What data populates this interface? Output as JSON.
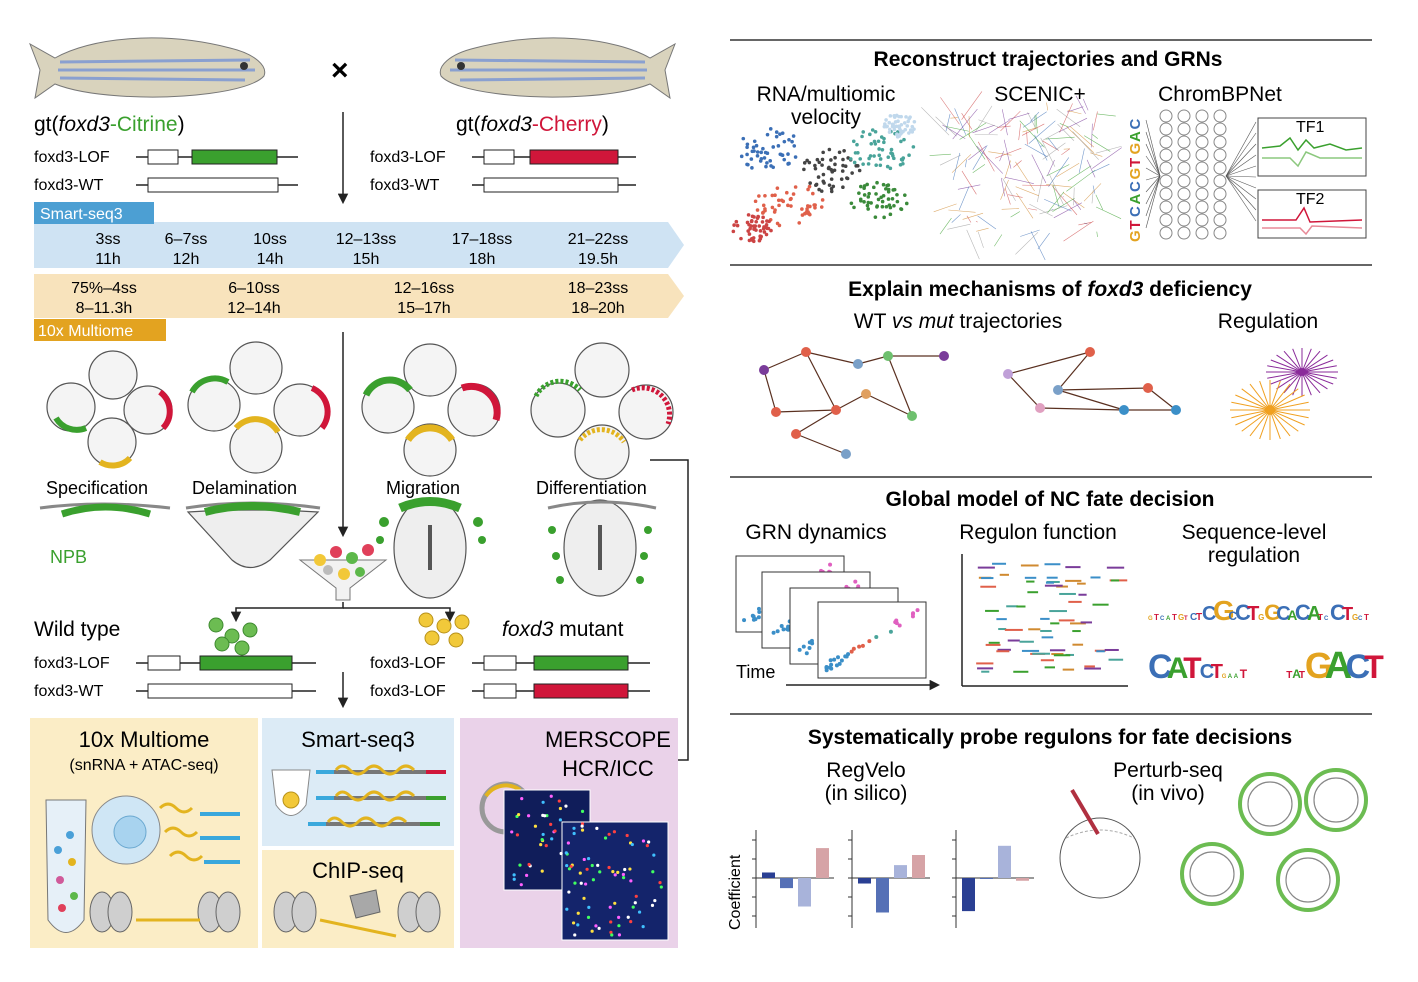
{
  "left": {
    "cross_symbol": "×",
    "parent_left": {
      "prefix": "gt(",
      "gene": "foxd3",
      "suffix": "-Citrine",
      "close": ")"
    },
    "parent_right": {
      "prefix": "gt(",
      "gene": "foxd3",
      "suffix": "-Cherry",
      "close": ")"
    },
    "allele_lof": "foxd3-LOF",
    "allele_wt": "foxd3-WT",
    "smartseq_tag": "Smart-seq3",
    "multiome_tag": "10x Multiome",
    "smartseq_stages": [
      {
        "ss": "3ss",
        "h": "11h"
      },
      {
        "ss": "6–7ss",
        "h": "12h"
      },
      {
        "ss": "10ss",
        "h": "14h"
      },
      {
        "ss": "12–13ss",
        "h": "15h"
      },
      {
        "ss": "17–18ss",
        "h": "18h"
      },
      {
        "ss": "21–22ss",
        "h": "19.5h"
      }
    ],
    "multiome_stages": [
      {
        "ss": "75%–4ss",
        "h": "8–11.3h"
      },
      {
        "ss": "6–10ss",
        "h": "12–14h"
      },
      {
        "ss": "12–16ss",
        "h": "15–17h"
      },
      {
        "ss": "18–23ss",
        "h": "18–20h"
      }
    ],
    "processes": [
      "Specification",
      "Delamination",
      "Migration",
      "Differentiation"
    ],
    "npb_label": "NPB",
    "wild_type": "Wild type",
    "mutant_gene": "foxd3",
    "mutant_suffix": " mutant",
    "assays": {
      "multiome_title": "10x Multiome",
      "multiome_sub": "(snRNA + ATAC-seq)",
      "smartseq_title": "Smart-seq3",
      "chip_title": "ChIP-seq",
      "merscope_title": "MERSCOPE",
      "merscope_sub": "HCR/ICC"
    }
  },
  "right": {
    "section1": {
      "title": "Reconstruct trajectories and GRNs",
      "col1_line1": "RNA/multiomic",
      "col1_line2": "velocity",
      "col2": "SCENIC+",
      "col3": "ChromBPNet",
      "sequence": "GTCACGTGAC",
      "tf1": "TF1",
      "tf2": "TF2"
    },
    "section2": {
      "title_pre": "Explain mechanisms of ",
      "title_gene": "foxd3",
      "title_post": " deficiency",
      "sub_pre": "WT ",
      "sub_vs": "vs",
      "sub_mut": " mut",
      "sub_post": " trajectories",
      "regulation": "Regulation"
    },
    "section3": {
      "title": "Global model of NC fate decision",
      "col1": "GRN dynamics",
      "col2": "Regulon function",
      "col3_line1": "Sequence-level",
      "col3_line2": "regulation",
      "time_label": "Time"
    },
    "section4": {
      "title": "Systematically probe regulons for fate decisions",
      "regvelo_line1": "RegVelo",
      "regvelo_line2": "(in silico)",
      "perturb_line1": "Perturb-seq",
      "perturb_line2": "(in vivo)",
      "ylabel": "Coefficient"
    }
  },
  "chart_data": {
    "type": "bar",
    "ylabel": "Coefficient",
    "panels": [
      {
        "values": [
          0.12,
          -0.22,
          -0.62,
          0.65
        ]
      },
      {
        "values": [
          -0.12,
          -0.75,
          0.28,
          0.5
        ]
      },
      {
        "values": [
          -0.72,
          -0.02,
          0.7,
          -0.06
        ]
      }
    ],
    "colors": [
      "#2a3f93",
      "#5570b6",
      "#a8b3da",
      "#d6a3a6"
    ]
  },
  "colors": {
    "green": "#3aa02e",
    "red": "#d0163a",
    "smartseq_bg": "#cfe3f3",
    "smartseq_tag": "#4c9fd3",
    "multiome_bg": "#f8e3bc",
    "multiome_tag": "#e3a320",
    "assay_yellow": "#fbedc6",
    "assay_blue": "#dcebf6",
    "assay_purple": "#ead2e9"
  }
}
